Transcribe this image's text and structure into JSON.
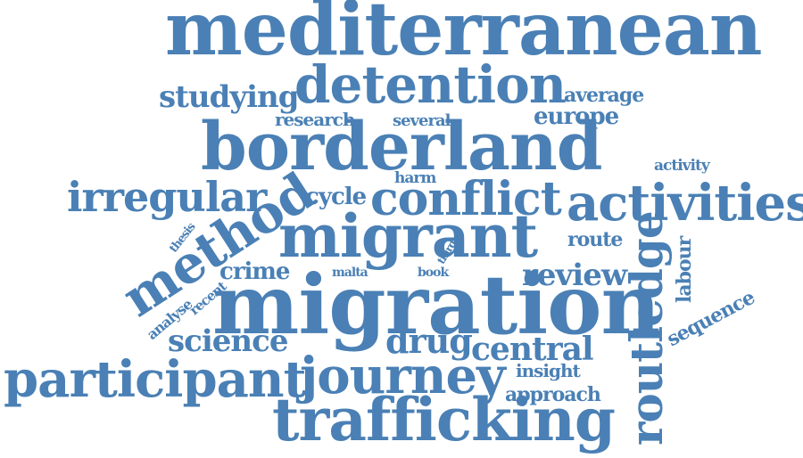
{
  "word_color": "#4a80b5",
  "background": "#ffffff",
  "words": {
    "mediterranean": "mediterranean",
    "detention": "detention",
    "studying": "studying",
    "average": "average",
    "research": "research",
    "several": "several",
    "europe": "europe",
    "borderland": "borderland",
    "activity": "activity",
    "harm": "harm",
    "irregular": "irregular",
    "cycle": "cycle",
    "conflict": "conflict",
    "activities": "activities",
    "method": "method",
    "migrant": "migrant",
    "thesis": "thesis",
    "route": "route",
    "routledge": "routledge",
    "labour": "labour",
    "third": "third",
    "crime": "crime",
    "malta": "malta",
    "book": "book",
    "review": "review",
    "recent": "recent",
    "analyse": "analyse",
    "migration": "migration",
    "sequence": "sequence",
    "science": "science",
    "drug": "drug",
    "central": "central",
    "participant": "participant",
    "journey": "journey",
    "insight": "insight",
    "approach": "approach",
    "trafficking": "trafficking"
  }
}
